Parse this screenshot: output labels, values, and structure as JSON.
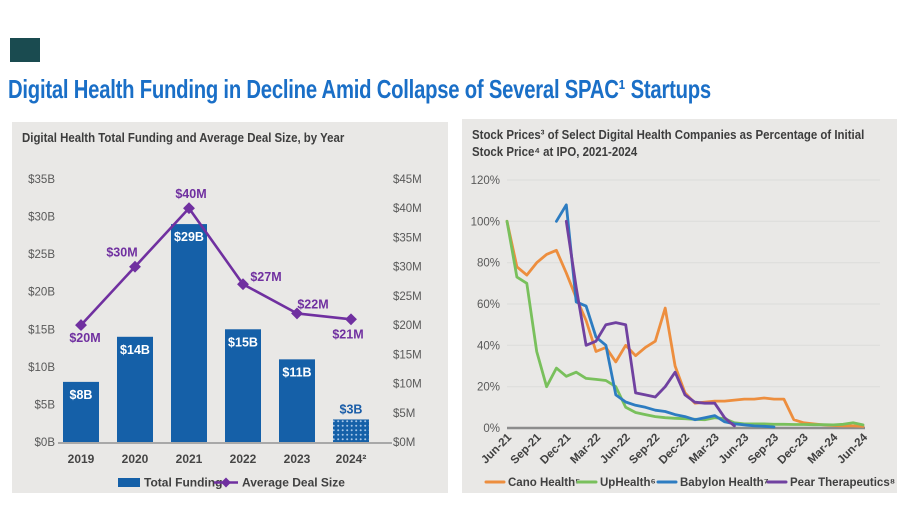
{
  "page": {
    "title": "Digital Health Funding in Decline Amid Collapse of Several SPAC¹ Startups",
    "colors": {
      "title": "#1A6FC7",
      "logo_block": "#1A4B50",
      "panel_bg": "#E9E8E6"
    }
  },
  "chart_data": [
    {
      "type": "bar",
      "title": "Digital Health Total Funding and Average Deal Size, by Year",
      "categories": [
        "2019",
        "2020",
        "2021",
        "2022",
        "2023",
        "2024²"
      ],
      "series": [
        {
          "name": "Total Funding",
          "kind": "bar",
          "axis": "left",
          "unit": "$B",
          "values": [
            8,
            14,
            29,
            15,
            11,
            3
          ],
          "value_labels": [
            "$8B",
            "$14B",
            "$29B",
            "$15B",
            "$11B",
            "$3B"
          ],
          "color": "#1560A8",
          "last_bar_pattern": "dotted"
        },
        {
          "name": "Average Deal Size",
          "kind": "line",
          "axis": "right",
          "unit": "$M",
          "values": [
            20,
            30,
            40,
            27,
            22,
            21
          ],
          "value_labels": [
            "$20M",
            "$30M",
            "$40M",
            "$27M",
            "$22M",
            "$21M"
          ],
          "color": "#7030A0",
          "marker": "diamond"
        }
      ],
      "left_axis": {
        "min": 0,
        "max": 35,
        "ticks": [
          "$35B",
          "$30B",
          "$25B",
          "$20B",
          "$15B",
          "$10B",
          "$5B",
          "$0B"
        ]
      },
      "right_axis": {
        "min": 0,
        "max": 45,
        "ticks": [
          "$45M",
          "$40M",
          "$35M",
          "$30M",
          "$25M",
          "$20M",
          "$15M",
          "$10M",
          "$5M",
          "$0M"
        ]
      },
      "legend": [
        "Total Funding",
        "Average Deal Size"
      ],
      "legend_position": "bottom"
    },
    {
      "type": "line",
      "title_lines": [
        "Stock Prices³ of Select Digital Health Companies as Percentage of Initial",
        "Stock Price⁴ at IPO, 2021-2024"
      ],
      "x_tick_labels": [
        "Jun-21",
        "Sep-21",
        "Dec-21",
        "Mar-22",
        "Jun-22",
        "Sep-22",
        "Dec-22",
        "Mar-23",
        "Jun-23",
        "Sep-23",
        "Dec-23",
        "Mar-24",
        "Jun-24"
      ],
      "x_unit": "month",
      "months_total": 37,
      "y_axis": {
        "min": 0,
        "max": 120,
        "ticks": [
          "120%",
          "100%",
          "80%",
          "60%",
          "40%",
          "20%",
          "0%"
        ]
      },
      "grid": true,
      "series": [
        {
          "name": "Cano Health⁵",
          "color": "#ED8E3E",
          "start_month_index": 0,
          "values": [
            100,
            78,
            74,
            80,
            84,
            86,
            75,
            63,
            52,
            37,
            39,
            32,
            40,
            35,
            39,
            42,
            58,
            30,
            17,
            12,
            12.5,
            13,
            13,
            13.5,
            14,
            14,
            14.5,
            14,
            14,
            4,
            2.5,
            2,
            1.5,
            1.2,
            1,
            1,
            0.8
          ]
        },
        {
          "name": "UpHealth⁶",
          "color": "#79C05C",
          "start_month_index": 0,
          "values": [
            100,
            73,
            70,
            37,
            20,
            29,
            25,
            27,
            24,
            23.5,
            23,
            20,
            10,
            7.5,
            6.5,
            5.5,
            5,
            4.7,
            4.5,
            4.2,
            4,
            5,
            4.5,
            2.5,
            2,
            2,
            2,
            1.8,
            1.8,
            1.7,
            1.7,
            1.6,
            1.6,
            1.5,
            1.8,
            2.5,
            1.5
          ]
        },
        {
          "name": "Babylon Health⁷",
          "color": "#2D7CC1",
          "start_month_index": 5,
          "values": [
            100,
            108,
            61,
            59,
            44,
            40,
            16,
            12.6,
            11,
            10,
            8.6,
            8,
            6.5,
            5.5,
            4,
            5,
            6,
            3,
            2,
            1.5,
            1,
            0.8,
            0.5
          ]
        },
        {
          "name": "Pear Therapeutics⁸",
          "color": "#7041A0",
          "start_month_index": 6,
          "values": [
            100,
            68,
            40,
            42,
            50,
            51,
            50,
            17,
            16,
            15,
            20,
            27,
            16,
            12.5,
            12,
            12,
            5,
            1
          ]
        }
      ],
      "legend": [
        "Cano Health⁵",
        "UpHealth⁶",
        "Babylon Health⁷",
        "Pear Therapeutics⁸"
      ],
      "legend_position": "bottom"
    }
  ]
}
